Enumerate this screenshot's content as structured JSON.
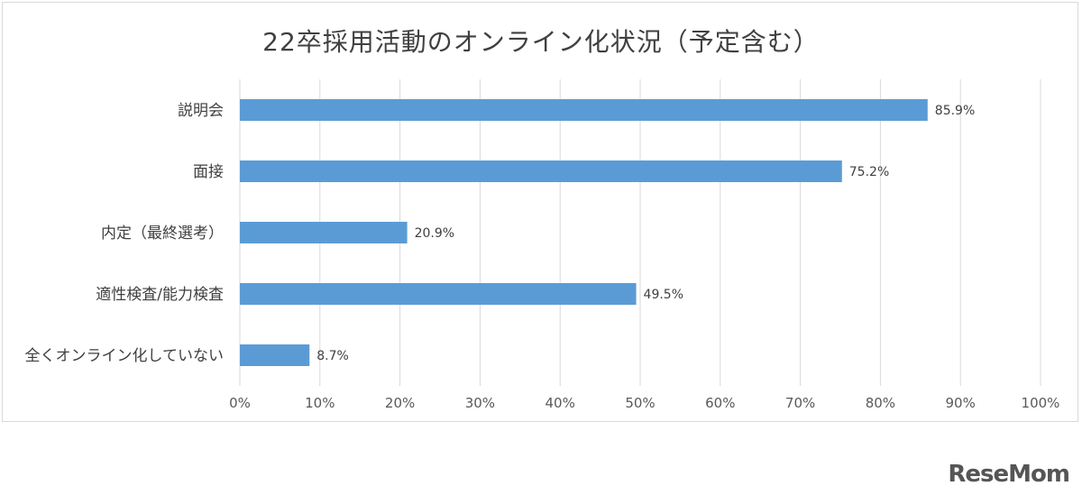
{
  "chart_data": {
    "type": "bar",
    "orientation": "horizontal",
    "title": "22卒採用活動のオンライン化状況（予定含む）",
    "categories": [
      "説明会",
      "面接",
      "内定（最終選考）",
      "適性検査/能力検査",
      "全くオンライン化していない"
    ],
    "values": [
      85.9,
      75.2,
      20.9,
      49.5,
      8.7
    ],
    "data_labels": [
      "85.9%",
      "75.2%",
      "20.9%",
      "49.5%",
      "8.7%"
    ],
    "xlim": [
      0,
      100
    ],
    "x_ticks": [
      "0%",
      "10%",
      "20%",
      "30%",
      "40%",
      "50%",
      "60%",
      "70%",
      "80%",
      "90%",
      "100%"
    ],
    "grid": "vertical",
    "bar_color": "#5b9bd5"
  },
  "brand": {
    "logo": "ReseMom"
  }
}
